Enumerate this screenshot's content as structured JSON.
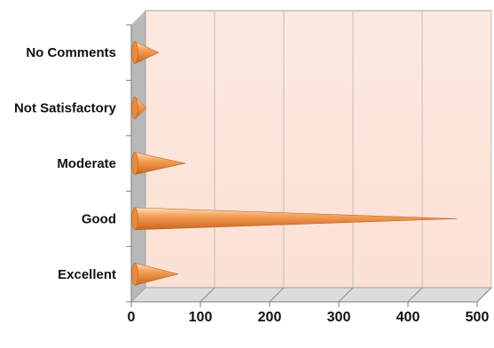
{
  "chart_data": {
    "type": "bar",
    "orientation": "horizontal",
    "shape": "cone",
    "categories": [
      "Excellent",
      "Good",
      "Moderate",
      "Not Satisfactory",
      "No Comments"
    ],
    "values": [
      68,
      470,
      78,
      22,
      40
    ],
    "xlim": [
      0,
      500
    ],
    "xticks": [
      "0",
      "100",
      "200",
      "300",
      "400",
      "500"
    ],
    "title": "",
    "xlabel": "",
    "ylabel": "",
    "grid": true,
    "legend": "none",
    "colors": {
      "wall": "#fde9e1",
      "floor": "#dcdcdc",
      "side_wall": "#b8b8b8",
      "gridline": "#bfbfbf",
      "cone_dark": "#c8641e",
      "cone_mid": "#f6a35a",
      "cone_light": "#fde2c4"
    }
  }
}
